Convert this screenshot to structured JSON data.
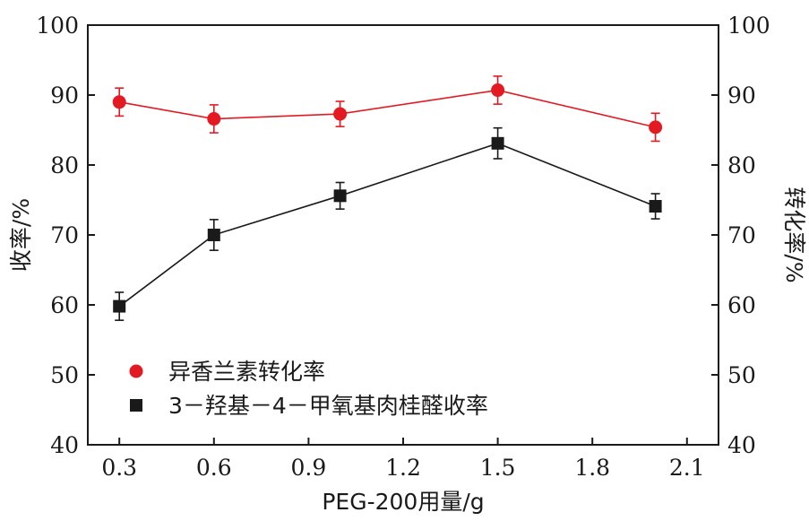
{
  "chart_data": {
    "type": "line",
    "title": "",
    "xlabel": "PEG-200用量/g",
    "ylabel_left": "收率/%",
    "ylabel_right": "转化率/%",
    "x_ticks": [
      "0.3",
      "0.6",
      "0.9",
      "1.2",
      "1.5",
      "1.8",
      "2.1"
    ],
    "y_ticks": [
      "40",
      "50",
      "60",
      "70",
      "80",
      "90",
      "100"
    ],
    "xlim": [
      0.2,
      2.2
    ],
    "ylim": [
      40,
      100
    ],
    "grid": false,
    "legend_position": "bottom-left",
    "series": [
      {
        "name": "异香兰素转化率",
        "axis": "right",
        "color": "#e31a22",
        "marker": "circle",
        "x": [
          0.3,
          0.6,
          1.0,
          1.5,
          2.0
        ],
        "y": [
          89.0,
          86.6,
          87.3,
          90.7,
          85.4
        ],
        "error": [
          2.0,
          2.0,
          1.8,
          2.0,
          2.0
        ]
      },
      {
        "name": "3－羟基－4－甲氧基肉桂醛收率",
        "axis": "left",
        "color": "#1a1a1a",
        "marker": "square",
        "x": [
          0.3,
          0.6,
          1.0,
          1.5,
          2.0
        ],
        "y": [
          59.8,
          70.0,
          75.6,
          83.1,
          74.1
        ],
        "error": [
          2.0,
          2.2,
          1.9,
          2.2,
          1.8
        ]
      }
    ]
  }
}
